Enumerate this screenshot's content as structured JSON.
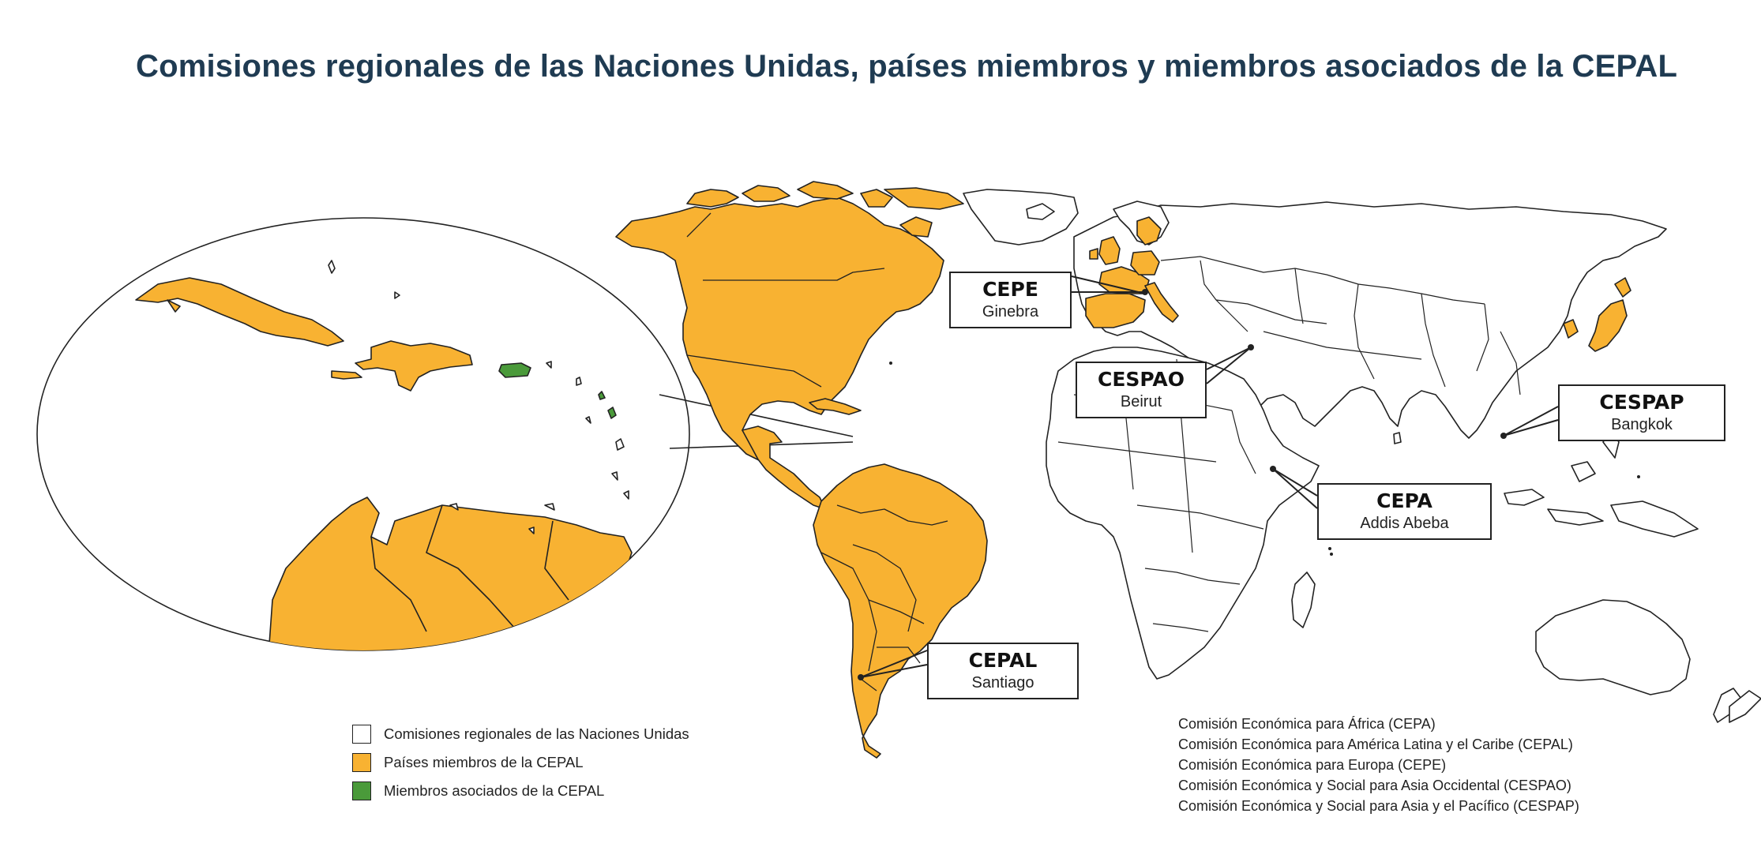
{
  "title": "Comisiones regionales de las Naciones Unidas, países miembros y miembros asociados de la CEPAL",
  "colors": {
    "title": "#1f3b52",
    "member": "#f8b232",
    "associate": "#4a9a3a",
    "commission": "#ffffff",
    "outline": "#222222"
  },
  "callouts": [
    {
      "abbr": "CEPE",
      "city": "Ginebra"
    },
    {
      "abbr": "CESPAO",
      "city": "Beirut"
    },
    {
      "abbr": "CESPAP",
      "city": "Bangkok"
    },
    {
      "abbr": "CEPA",
      "city": "Addis Abeba"
    },
    {
      "abbr": "CEPAL",
      "city": "Santiago"
    }
  ],
  "legend": [
    {
      "label": "Comisiones regionales de las Naciones Unidas",
      "color": "#ffffff"
    },
    {
      "label": "Países miembros de la CEPAL",
      "color": "#f8b232"
    },
    {
      "label": "Miembros asociados de la CEPAL",
      "color": "#4a9a3a"
    }
  ],
  "commissions_list": [
    "Comisión Económica para África (CEPA)",
    "Comisión Económica para América Latina y el Caribe (CEPAL)",
    "Comisión Económica para Europa (CEPE)",
    "Comisión Económica y Social para Asia Occidental (CESPAO)",
    "Comisión Económica y Social para Asia y el Pacífico (CESPAP)"
  ]
}
